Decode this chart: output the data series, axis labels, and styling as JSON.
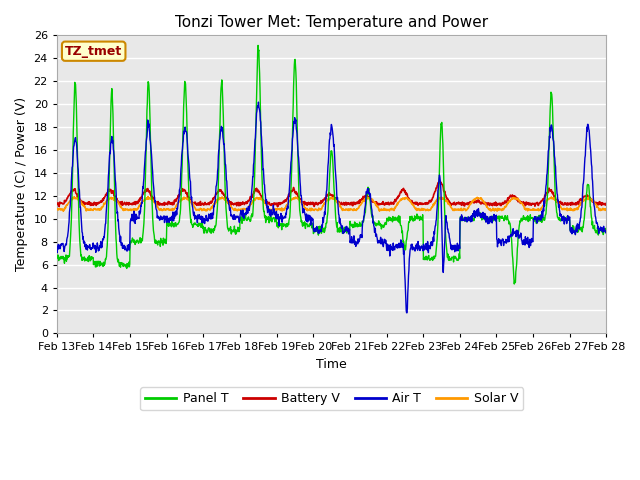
{
  "title": "Tonzi Tower Met: Temperature and Power",
  "xlabel": "Time",
  "ylabel": "Temperature (C) / Power (V)",
  "ylim": [
    0,
    26
  ],
  "yticks": [
    0,
    2,
    4,
    6,
    8,
    10,
    12,
    14,
    16,
    18,
    20,
    22,
    24,
    26
  ],
  "xtick_labels": [
    "Feb 13",
    "Feb 14",
    "Feb 15",
    "Feb 16",
    "Feb 17",
    "Feb 18",
    "Feb 19",
    "Feb 20",
    "Feb 21",
    "Feb 22",
    "Feb 23",
    "Feb 24",
    "Feb 25",
    "Feb 26",
    "Feb 27",
    "Feb 28"
  ],
  "panel_t_color": "#00cc00",
  "battery_v_color": "#cc0000",
  "air_t_color": "#0000cc",
  "solar_v_color": "#ff9900",
  "fig_bg_color": "#ffffff",
  "plot_bg_color": "#e8e8e8",
  "grid_color": "#ffffff",
  "annotation_text": "TZ_tmet",
  "annotation_color": "#990000",
  "annotation_bg": "#ffffcc",
  "annotation_edge": "#cc8800",
  "legend_entries": [
    "Panel T",
    "Battery V",
    "Air T",
    "Solar V"
  ],
  "title_fontsize": 11,
  "axis_label_fontsize": 9,
  "tick_fontsize": 8,
  "legend_fontsize": 9
}
